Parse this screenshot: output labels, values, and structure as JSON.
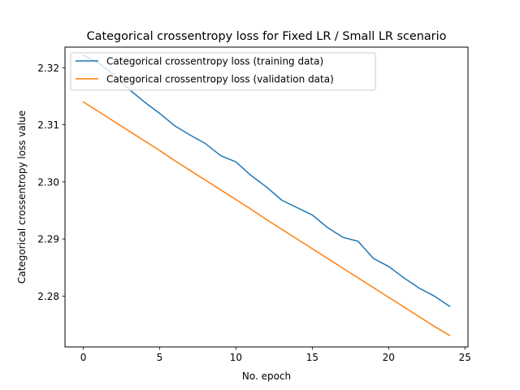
{
  "chart_data": {
    "type": "line",
    "title": "Categorical crossentropy loss for Fixed LR / Small LR scenario",
    "xlabel": "No. epoch",
    "ylabel": "Categorical crossentropy loss value",
    "xlim": [
      -1.2,
      25.2
    ],
    "ylim": [
      2.2711,
      2.3236
    ],
    "xticks": [
      0,
      5,
      10,
      15,
      20,
      25
    ],
    "xtick_labels": [
      "0",
      "5",
      "10",
      "15",
      "20",
      "25"
    ],
    "yticks": [
      2.28,
      2.29,
      2.3,
      2.31,
      2.32
    ],
    "ytick_labels": [
      "2.28",
      "2.29",
      "2.30",
      "2.31",
      "2.32"
    ],
    "grid": false,
    "legend_position": "top-left",
    "x": [
      0,
      1,
      2,
      3,
      4,
      5,
      6,
      7,
      8,
      9,
      10,
      11,
      12,
      13,
      14,
      15,
      16,
      17,
      18,
      19,
      20,
      21,
      22,
      23,
      24
    ],
    "series": [
      {
        "name": "Categorical crossentropy loss (training data)",
        "color": "#1f77b4",
        "values": [
          2.3222,
          2.3208,
          2.3188,
          2.3162,
          2.314,
          2.312,
          2.3098,
          2.3082,
          2.3067,
          2.3046,
          2.3035,
          2.3011,
          2.2991,
          2.2968,
          2.2955,
          2.2942,
          2.292,
          2.2903,
          2.2896,
          2.2866,
          2.2852,
          2.2832,
          2.2814,
          2.28,
          2.2782
        ]
      },
      {
        "name": "Categorical crossentropy loss (validation data)",
        "color": "#ff7f0e",
        "values": [
          2.314,
          2.3123,
          2.3106,
          2.3089,
          2.3072,
          2.3055,
          2.3037,
          2.302,
          2.3003,
          2.2986,
          2.2969,
          2.2952,
          2.2934,
          2.2917,
          2.29,
          2.2883,
          2.2866,
          2.2849,
          2.2832,
          2.2815,
          2.2798,
          2.2781,
          2.2764,
          2.2747,
          2.2731
        ]
      }
    ]
  }
}
